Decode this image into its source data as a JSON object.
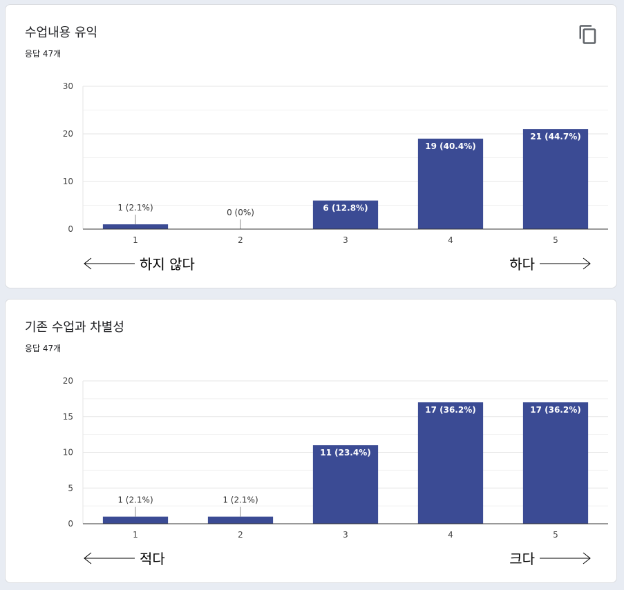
{
  "charts": [
    {
      "title": "수업내용 유익",
      "responses": "응답 47개",
      "low_label": "하지 않다",
      "high_label": "하다",
      "icon": "copy-icon",
      "chart_data": {
        "type": "bar",
        "categories": [
          "1",
          "2",
          "3",
          "4",
          "5"
        ],
        "values": [
          1,
          0,
          6,
          19,
          21
        ],
        "data_labels": [
          "1 (2.1%)",
          "0 (0%)",
          "6 (12.8%)",
          "19 (40.4%)",
          "21 (44.7%)"
        ],
        "yticks": [
          "0",
          "10",
          "20",
          "30"
        ],
        "ylim": [
          0,
          30
        ],
        "grid": true,
        "bar_color": "#3b4b94"
      }
    },
    {
      "title": "기존 수업과 차별성",
      "responses": "응답 47개",
      "low_label": "적다",
      "high_label": "크다",
      "chart_data": {
        "type": "bar",
        "categories": [
          "1",
          "2",
          "3",
          "4",
          "5"
        ],
        "values": [
          1,
          1,
          11,
          17,
          17
        ],
        "data_labels": [
          "1 (2.1%)",
          "1 (2.1%)",
          "11 (23.4%)",
          "17 (36.2%)",
          "17 (36.2%)"
        ],
        "yticks": [
          "0",
          "5",
          "10",
          "15",
          "20"
        ],
        "ylim": [
          0,
          20
        ],
        "grid": true,
        "bar_color": "#3b4b94"
      }
    }
  ]
}
